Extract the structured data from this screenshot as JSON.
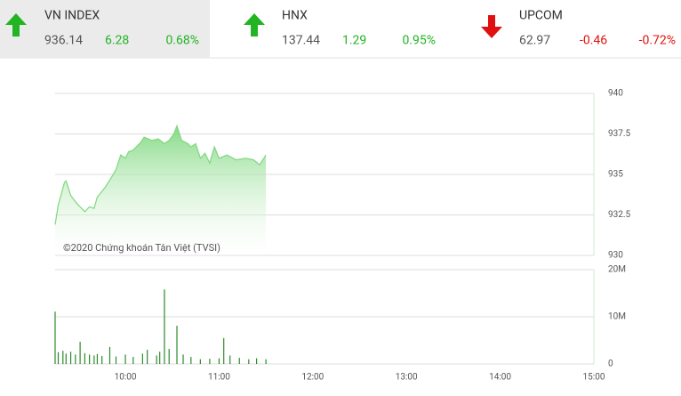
{
  "tickers": [
    {
      "name": "VN INDEX",
      "price": "936.14",
      "change": "6.28",
      "percent": "0.68%",
      "direction": "up",
      "color": "#22b422",
      "highlight": true
    },
    {
      "name": "HNX",
      "price": "137.44",
      "change": "1.29",
      "percent": "0.95%",
      "direction": "up",
      "color": "#22b422",
      "highlight": false
    },
    {
      "name": "UPCOM",
      "price": "62.97",
      "change": "-0.46",
      "percent": "-0.72%",
      "direction": "down",
      "color": "#e01010",
      "highlight": false
    }
  ],
  "chart_data": [
    {
      "type": "area",
      "annotation": "©2020 Chứng khoán Tân Việt (TVSI)",
      "color": "#7fd87f",
      "x": [
        555,
        557,
        561,
        562,
        565,
        569,
        574,
        577,
        580,
        582,
        587,
        591,
        594,
        597,
        600,
        602,
        605,
        610,
        612,
        617,
        621,
        625,
        628,
        631,
        633,
        636,
        640,
        642,
        645,
        648,
        651,
        654,
        657,
        660,
        665,
        671,
        677,
        682,
        686,
        688,
        690
      ],
      "values": [
        931.9,
        933.1,
        934.5,
        934.6,
        933.7,
        933.2,
        932.7,
        933.0,
        932.9,
        933.6,
        934.2,
        934.8,
        935.3,
        936.2,
        936.0,
        936.4,
        936.5,
        937.0,
        937.3,
        937.1,
        937.2,
        936.9,
        937.1,
        937.5,
        938.0,
        937.1,
        936.9,
        936.7,
        936.9,
        936.0,
        936.3,
        935.7,
        936.7,
        936.0,
        936.2,
        935.9,
        936.0,
        935.9,
        935.6,
        935.9,
        936.2
      ],
      "xlim": [
        555,
        900
      ],
      "ylim": [
        930,
        940
      ],
      "yticks": [
        930,
        932.5,
        935,
        937.5,
        940
      ],
      "grid": true
    },
    {
      "type": "bar",
      "color": "#2a8c2a",
      "x": [
        555,
        557,
        560,
        562,
        565,
        568,
        571,
        574,
        577,
        580,
        582,
        585,
        590,
        594,
        600,
        605,
        611,
        614,
        620,
        622,
        625,
        628,
        633,
        637,
        642,
        648,
        654,
        660,
        663,
        667,
        673,
        679,
        684,
        690
      ],
      "values": [
        11100000,
        2500000,
        2800000,
        2200000,
        2600000,
        2000000,
        4700000,
        2300000,
        2000000,
        1800000,
        2100000,
        1700000,
        3600000,
        1600000,
        2000000,
        1500000,
        2200000,
        3000000,
        1800000,
        2600000,
        15800000,
        3200000,
        8100000,
        2000000,
        1500000,
        1000000,
        1100000,
        1200000,
        5500000,
        1800000,
        1300000,
        1000000,
        1200000,
        1000000
      ],
      "xlim": [
        555,
        900
      ],
      "ylim": [
        0,
        20000000
      ],
      "yticks": [
        0,
        {
          "value": 10000000,
          "label": "10M"
        },
        {
          "value": 20000000,
          "label": "20M"
        }
      ],
      "xticks": [
        {
          "value": 600,
          "label": "10:00"
        },
        {
          "value": 660,
          "label": "11:00"
        },
        {
          "value": 720,
          "label": "12:00"
        },
        {
          "value": 780,
          "label": "13:00"
        },
        {
          "value": 840,
          "label": "14:00"
        },
        {
          "value": 900,
          "label": "15:00"
        }
      ],
      "grid": true
    }
  ]
}
